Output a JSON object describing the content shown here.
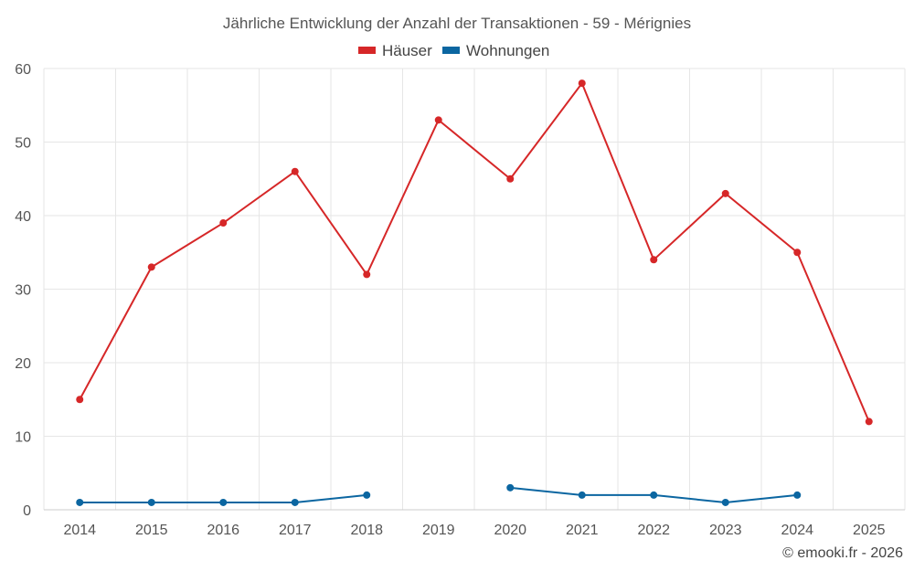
{
  "chart_data": {
    "type": "line",
    "title": "Jährliche Entwicklung der Anzahl der Transaktionen - 59 - Mérignies",
    "categories": [
      "2014",
      "2015",
      "2016",
      "2017",
      "2018",
      "2019",
      "2020",
      "2021",
      "2022",
      "2023",
      "2024",
      "2025"
    ],
    "series": [
      {
        "name": "Häuser",
        "color": "#d62728",
        "values": [
          15,
          33,
          39,
          46,
          32,
          53,
          45,
          58,
          34,
          43,
          35,
          12
        ]
      },
      {
        "name": "Wohnungen",
        "color": "#0b66a1",
        "values": [
          1,
          1,
          1,
          1,
          2,
          null,
          3,
          2,
          2,
          1,
          2,
          null
        ]
      }
    ],
    "y_ticks": [
      0,
      10,
      20,
      30,
      40,
      50,
      60
    ],
    "ylim": [
      0,
      60
    ],
    "grid": true,
    "legend_position": "top-center"
  },
  "credit": "© emooki.fr - 2026"
}
